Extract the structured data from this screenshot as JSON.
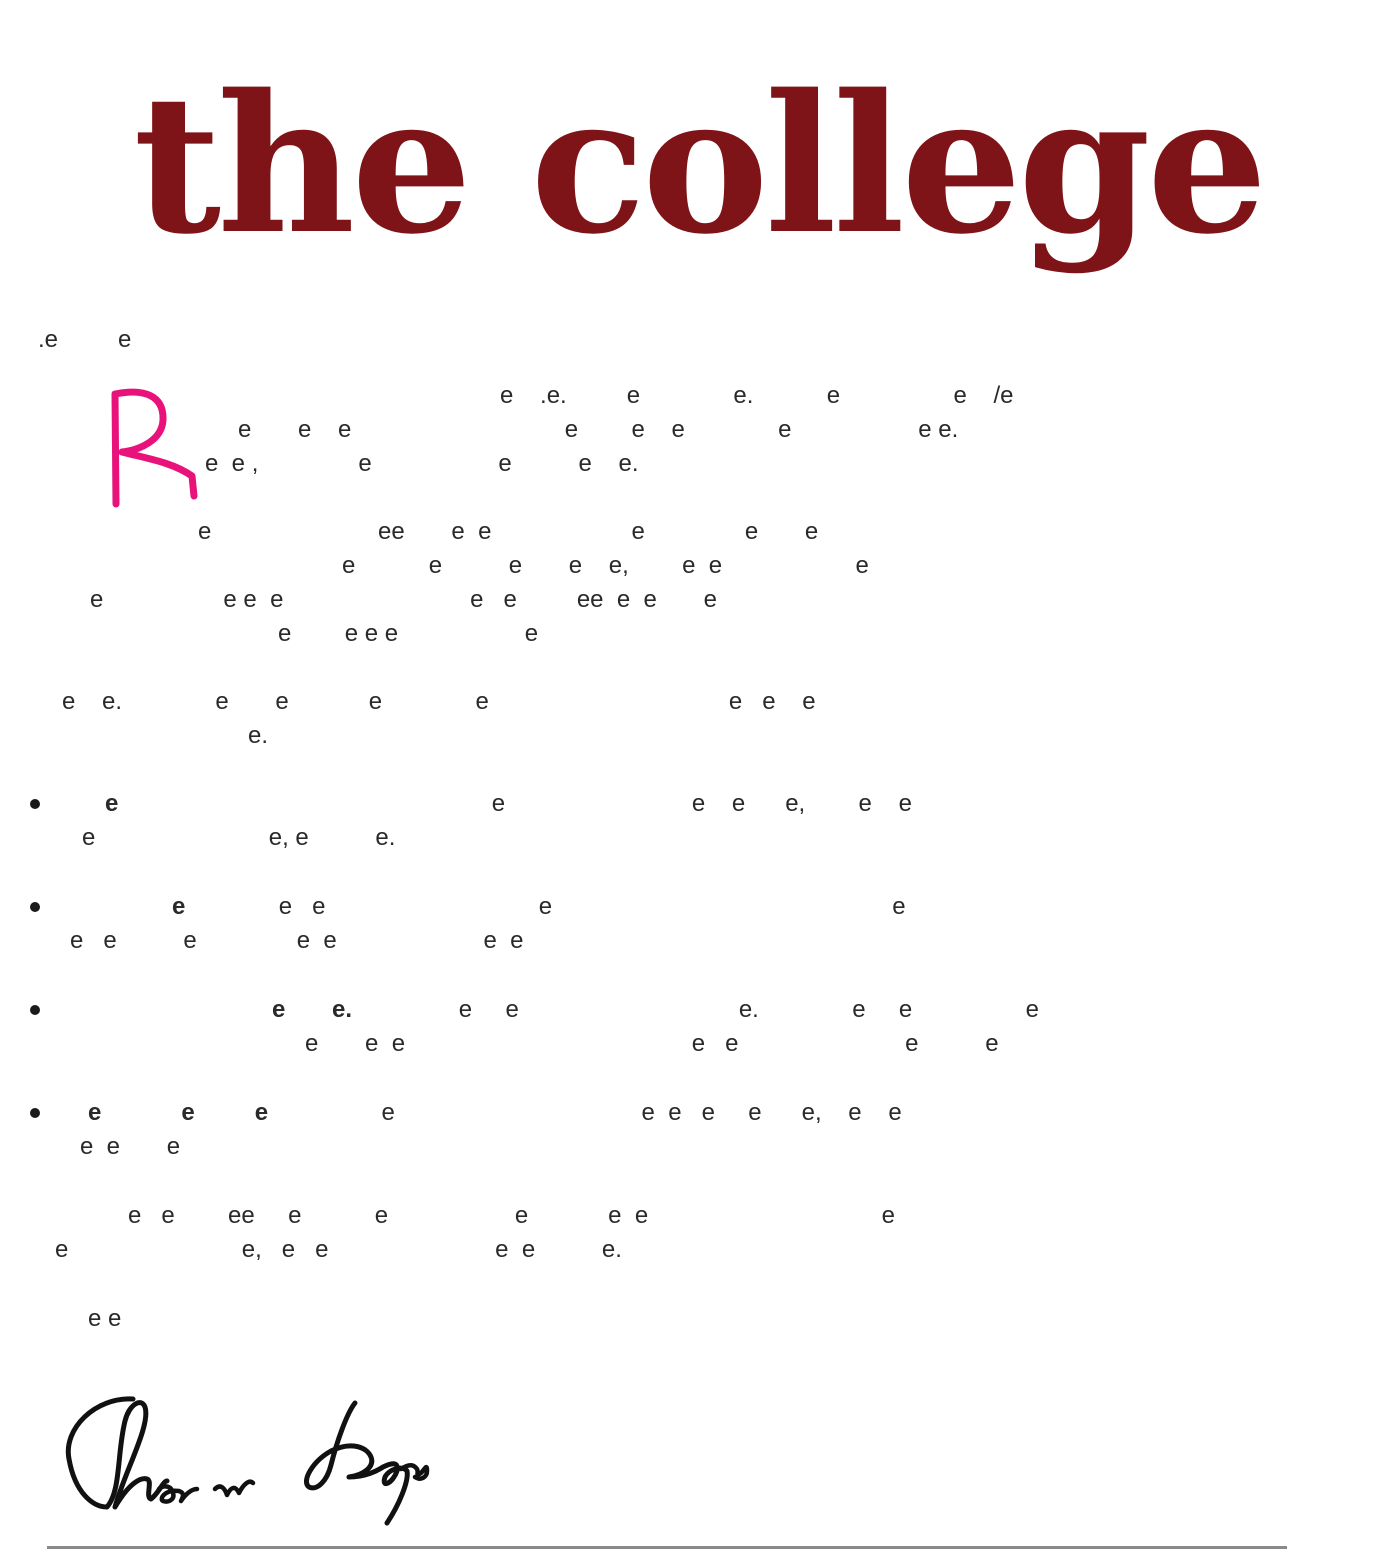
{
  "masthead": {
    "title": "the college",
    "color": "#7e1418"
  },
  "annotation": {
    "letter": "R",
    "color": "#e8127a"
  },
  "signature": {
    "alt": "handwritten signature"
  },
  "colors": {
    "text": "#1a1a1a",
    "rule": "#8a8a8a"
  }
}
